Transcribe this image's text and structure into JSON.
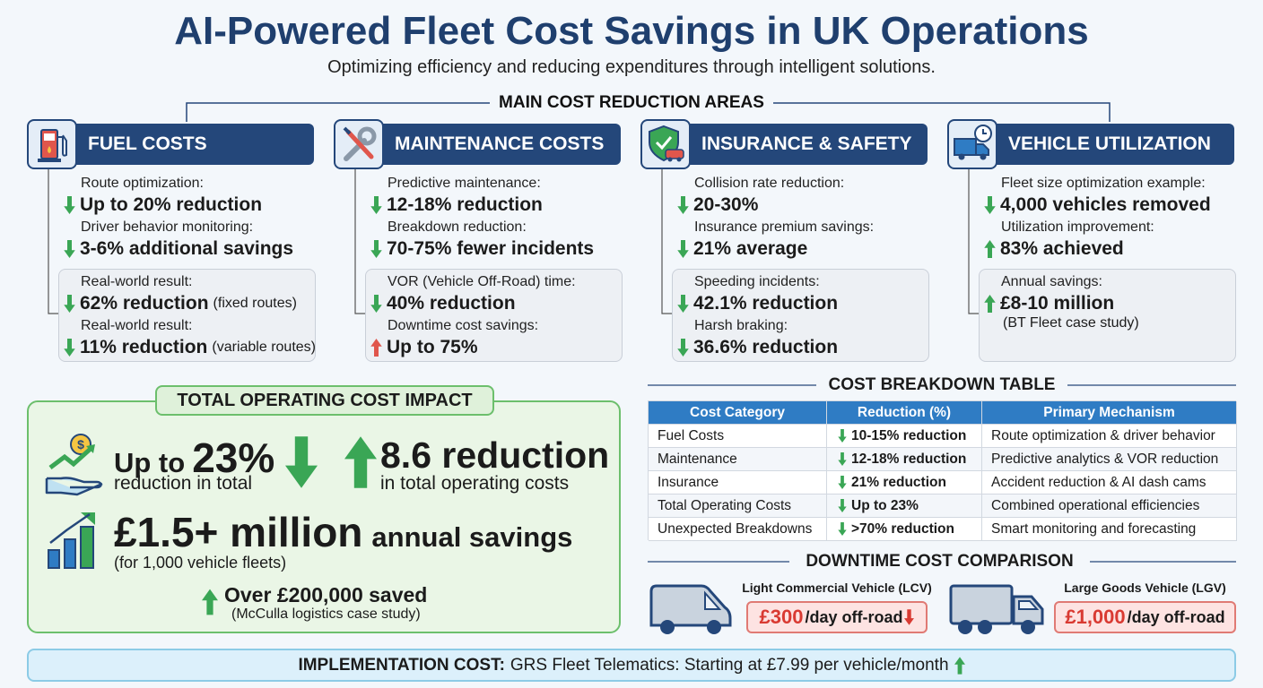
{
  "header": {
    "title": "AI-Powered Fleet Cost Savings in UK Operations",
    "subtitle": "Optimizing efficiency and reducing expenditures through intelligent solutions."
  },
  "main_section": {
    "title": "MAIN COST REDUCTION AREAS",
    "cards": [
      {
        "title": "FUEL COSTS",
        "items": [
          {
            "label": "Route optimization:",
            "value": "Up to 20% reduction",
            "arrow": "down"
          },
          {
            "label": "Driver behavior monitoring:",
            "value": "3-6% additional savings",
            "arrow": "down"
          }
        ],
        "results": [
          {
            "label": "Real-world result:",
            "value": "62% reduction",
            "note": "(fixed routes)",
            "arrow": "down"
          },
          {
            "label": "Real-world result:",
            "value": "11% reduction",
            "note": "(variable routes)",
            "arrow": "down"
          }
        ]
      },
      {
        "title": "MAINTENANCE COSTS",
        "items": [
          {
            "label": "Predictive maintenance:",
            "value": "12-18% reduction",
            "arrow": "down"
          },
          {
            "label": "Breakdown reduction:",
            "value": "70-75% fewer incidents",
            "arrow": "down"
          }
        ],
        "results": [
          {
            "label": "VOR (Vehicle Off-Road) time:",
            "value": "40% reduction",
            "arrow": "down"
          },
          {
            "label": "Downtime cost savings:",
            "value": "Up to 75%",
            "arrow": "up",
            "arrow_color": "#e0564c"
          }
        ]
      },
      {
        "title": "INSURANCE & SAFETY",
        "items": [
          {
            "label": "Collision rate reduction:",
            "value": "20-30%",
            "arrow": "down"
          },
          {
            "label": "Insurance premium savings:",
            "value": "21% average",
            "arrow": "down"
          }
        ],
        "results": [
          {
            "label": "Speeding incidents:",
            "value": "42.1% reduction",
            "arrow": "down"
          },
          {
            "label": "Harsh braking:",
            "value": "36.6% reduction",
            "arrow": "down"
          }
        ]
      },
      {
        "title": "VEHICLE UTILIZATION",
        "items": [
          {
            "label": "Fleet size optimization example:",
            "value": "4,000 vehicles removed",
            "arrow": "down"
          },
          {
            "label": "Utilization improvement:",
            "value": "83% achieved",
            "arrow": "up"
          }
        ],
        "results": [
          {
            "label": "Annual savings:",
            "value": "£8-10 million",
            "note": "(BT Fleet case study)",
            "arrow": "up"
          }
        ]
      }
    ]
  },
  "total_impact": {
    "title": "TOTAL OPERATING COST IMPACT",
    "headline_prefix": "Up to",
    "headline_value": "23%",
    "headline_caption": "reduction in total",
    "secondary_value": "8.6 reduction",
    "secondary_caption": "in total operating costs",
    "savings_value": "£1.5+ million",
    "savings_suffix": "annual savings",
    "savings_note": "(for 1,000 vehicle fleets)",
    "case_value": "Over £200,000 saved",
    "case_note": "(McCulla logistics case study)"
  },
  "cost_table": {
    "title": "COST BREAKDOWN TABLE",
    "columns": [
      "Cost Category",
      "Reduction (%)",
      "Primary Mechanism"
    ],
    "rows": [
      [
        "Fuel Costs",
        "10-15% reduction",
        "Route optimization & driver behavior"
      ],
      [
        "Maintenance",
        "12-18% reduction",
        "Predictive analytics & VOR reduction"
      ],
      [
        "Insurance",
        "21% reduction",
        "Accident reduction & AI dash cams"
      ],
      [
        "Total Operating Costs",
        "Up to 23%",
        "Combined operational efficiencies"
      ],
      [
        "Unexpected Breakdowns",
        ">70% reduction",
        "Smart monitoring and forecasting"
      ]
    ]
  },
  "downtime": {
    "title": "DOWNTIME COST COMPARISON",
    "vehicles": [
      {
        "label": "Light Commercial Vehicle (LCV)",
        "cost": "£300",
        "unit": "/day off-road"
      },
      {
        "label": "Large Goods Vehicle (LGV)",
        "cost": "£1,000",
        "unit": "/day off-road"
      }
    ]
  },
  "footer": {
    "label": "IMPLEMENTATION COST:",
    "text": "GRS Fleet Telematics: Starting at £7.99 per vehicle/month"
  }
}
